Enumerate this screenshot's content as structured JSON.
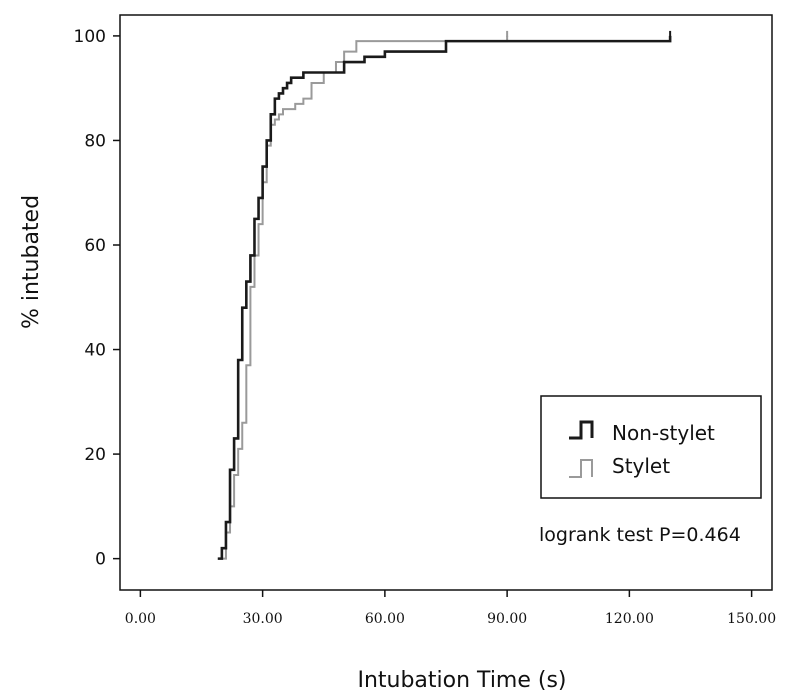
{
  "chart_data": {
    "type": "line",
    "step": true,
    "xlabel": "Intubation Time (s)",
    "ylabel": "% intubated",
    "xlim": [
      -5,
      155
    ],
    "ylim": [
      -6,
      104
    ],
    "x_ticks": [
      0,
      30,
      60,
      90,
      120,
      150
    ],
    "x_tick_labels": [
      "0.00",
      "30.00",
      "60.00",
      "90.00",
      "120.00",
      "150.00"
    ],
    "y_ticks": [
      0,
      20,
      40,
      60,
      80,
      100
    ],
    "y_tick_labels": [
      "0",
      "20",
      "40",
      "60",
      "80",
      "100"
    ],
    "grid": false,
    "legend_position": "bottom-right",
    "annotation": "logrank test P=0.464",
    "series": [
      {
        "name": "Non-stylet",
        "color": "#1a1a1a",
        "x": [
          19,
          20,
          21,
          22,
          23,
          24,
          25,
          26,
          27,
          28,
          29,
          30,
          31,
          32,
          33,
          34,
          35,
          36,
          37,
          38,
          40,
          45,
          50,
          55,
          60,
          75,
          130
        ],
        "y": [
          0,
          2,
          7,
          17,
          23,
          38,
          48,
          53,
          58,
          65,
          69,
          75,
          80,
          85,
          88,
          89,
          90,
          91,
          92,
          92,
          93,
          93,
          95,
          96,
          97,
          99,
          100
        ]
      },
      {
        "name": "Stylet",
        "color": "#9a9a9a",
        "x": [
          19,
          21,
          22,
          23,
          24,
          25,
          26,
          27,
          28,
          29,
          30,
          31,
          32,
          33,
          34,
          35,
          38,
          40,
          42,
          45,
          48,
          50,
          53,
          60,
          90
        ],
        "y": [
          0,
          5,
          10,
          16,
          21,
          26,
          37,
          52,
          58,
          64,
          72,
          79,
          83,
          84,
          85,
          86,
          87,
          88,
          91,
          93,
          95,
          97,
          99,
          99,
          100
        ]
      }
    ]
  }
}
